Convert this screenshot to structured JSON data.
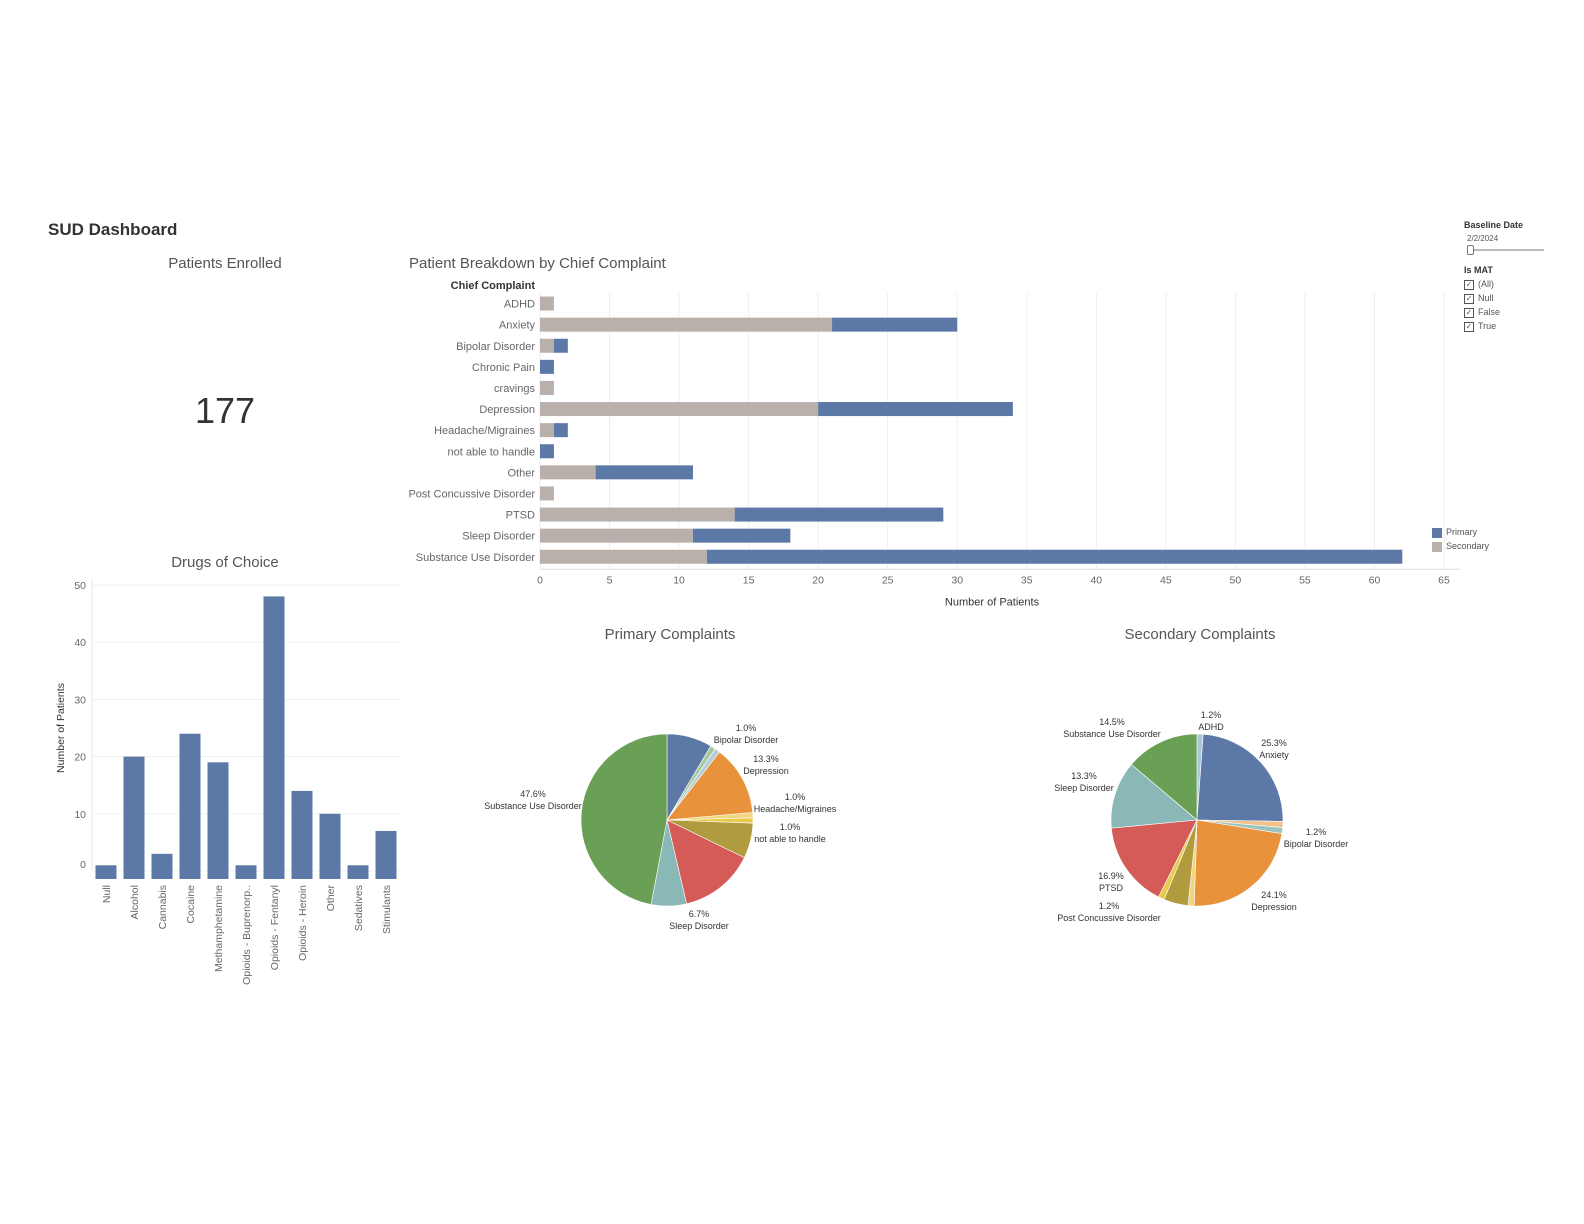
{
  "dashboard": {
    "title": "SUD Dashboard"
  },
  "kpi": {
    "title": "Patients Enrolled",
    "value": "177"
  },
  "filters": {
    "baseline": {
      "label": "Baseline Date",
      "value": "2/2/2024"
    },
    "is_mat": {
      "label": "Is MAT",
      "options": [
        {
          "label": "(All)",
          "checked": true
        },
        {
          "label": "Null",
          "checked": true
        },
        {
          "label": "False",
          "checked": true
        },
        {
          "label": "True",
          "checked": true
        }
      ]
    }
  },
  "legend": {
    "items": [
      {
        "label": "Primary",
        "color": "#5b78a6"
      },
      {
        "label": "Secondary",
        "color": "#b9b0ac"
      }
    ]
  },
  "colors": {
    "primary": "#5b78a6",
    "secondary": "#b9b0ac",
    "drug_bar": "#5b78a6"
  },
  "chart_data": [
    {
      "type": "bar",
      "orientation": "horizontal",
      "stacked": true,
      "title": "Patient Breakdown by Chief Complaint",
      "row_header": "Chief Complaint",
      "xlabel": "Number of Patients",
      "xlim": [
        0,
        65
      ],
      "xticks": [
        0,
        5,
        10,
        15,
        20,
        25,
        30,
        35,
        40,
        45,
        50,
        55,
        60,
        65
      ],
      "categories": [
        "ADHD",
        "Anxiety",
        "Bipolar Disorder",
        "Chronic Pain",
        "cravings",
        "Depression",
        "Headache/Migraines",
        "not able to handle",
        "Other",
        "Post Concussive Disorder",
        "PTSD",
        "Sleep Disorder",
        "Substance Use Disorder"
      ],
      "series": [
        {
          "name": "Secondary",
          "values": [
            1,
            21,
            1,
            0,
            1,
            20,
            1,
            0,
            4,
            1,
            14,
            11,
            12
          ]
        },
        {
          "name": "Primary",
          "values": [
            0,
            9,
            1,
            1,
            0,
            14,
            1,
            1,
            7,
            0,
            15,
            7,
            50
          ]
        }
      ]
    },
    {
      "type": "bar",
      "title": "Drugs of Choice",
      "ylabel": "Number of Patients",
      "ylim": [
        0,
        50
      ],
      "yticks": [
        0,
        10,
        20,
        30,
        40,
        50
      ],
      "categories": [
        "Null",
        "Alcohol",
        "Cannabis",
        "Cocaine",
        "Methamphetamine",
        "Opioids - Buprenorp..",
        "Opioids - Fentanyl",
        "Opioids - Heroin",
        "Other",
        "Sedatives",
        "Stimulants"
      ],
      "values": [
        1,
        20,
        3,
        24,
        19,
        1,
        48,
        14,
        10,
        1,
        7
      ]
    },
    {
      "type": "pie",
      "title": "Primary Complaints",
      "slices": [
        {
          "name": "Anxiety",
          "value": 8.6,
          "color": "#5b78a6",
          "pct": "",
          "label": ""
        },
        {
          "name": "Bipolar Disorder",
          "value": 1.0,
          "color": "#a8c8a0",
          "pct": "1.0%",
          "label": "Bipolar Disorder"
        },
        {
          "name": "Chronic Pain",
          "value": 1.0,
          "color": "#b6cdda",
          "pct": "",
          "label": ""
        },
        {
          "name": "Depression",
          "value": 13.3,
          "color": "#e8923c",
          "pct": "13.3%",
          "label": "Depression"
        },
        {
          "name": "Headache/Migraines",
          "value": 1.0,
          "color": "#f1d47e",
          "pct": "1.0%",
          "label": "Headache/Migraines"
        },
        {
          "name": "not able to handle",
          "value": 1.0,
          "color": "#e9cb4c",
          "pct": "1.0%",
          "label": "not able to handle"
        },
        {
          "name": "Other",
          "value": 6.7,
          "color": "#b09b3f",
          "pct": "",
          "label": ""
        },
        {
          "name": "PTSD",
          "value": 14.3,
          "color": "#d45b57",
          "pct": "",
          "label": ""
        },
        {
          "name": "Sleep Disorder",
          "value": 6.7,
          "color": "#89b8b6",
          "pct": "6.7%",
          "label": "Sleep Disorder"
        },
        {
          "name": "Substance Use Disorder",
          "value": 47.6,
          "color": "#6a9f56",
          "pct": "47.6%",
          "label": "Substance Use Disorder"
        }
      ]
    },
    {
      "type": "pie",
      "title": "Secondary Complaints",
      "slices": [
        {
          "name": "ADHD",
          "value": 1.2,
          "color": "#a9c6dc",
          "pct": "1.2%",
          "label": "ADHD"
        },
        {
          "name": "Anxiety",
          "value": 25.3,
          "color": "#5b78a6",
          "pct": "25.3%",
          "label": "Anxiety"
        },
        {
          "name": "cravings",
          "value": 1.2,
          "color": "#f2c28a",
          "pct": "",
          "label": ""
        },
        {
          "name": "Bipolar Disorder",
          "value": 1.2,
          "color": "#9cc4bf",
          "pct": "1.2%",
          "label": "Bipolar Disorder"
        },
        {
          "name": "Depression",
          "value": 24.1,
          "color": "#e8923c",
          "pct": "24.1%",
          "label": "Depression"
        },
        {
          "name": "Headache/Migraines",
          "value": 1.2,
          "color": "#f1d47e",
          "pct": "",
          "label": ""
        },
        {
          "name": "Other",
          "value": 4.8,
          "color": "#b09b3f",
          "pct": "",
          "label": ""
        },
        {
          "name": "Post Concussive Disorder",
          "value": 1.2,
          "color": "#e9cb4c",
          "pct": "1.2%",
          "label": "Post Concussive Disorder"
        },
        {
          "name": "PTSD",
          "value": 16.9,
          "color": "#d45b57",
          "pct": "16.9%",
          "label": "PTSD"
        },
        {
          "name": "Sleep Disorder",
          "value": 13.3,
          "color": "#89b8b6",
          "pct": "13.3%",
          "label": "Sleep Disorder"
        },
        {
          "name": "Substance Use Disorder",
          "value": 14.5,
          "color": "#6a9f56",
          "pct": "14.5%",
          "label": "Substance Use Disorder"
        }
      ]
    }
  ]
}
